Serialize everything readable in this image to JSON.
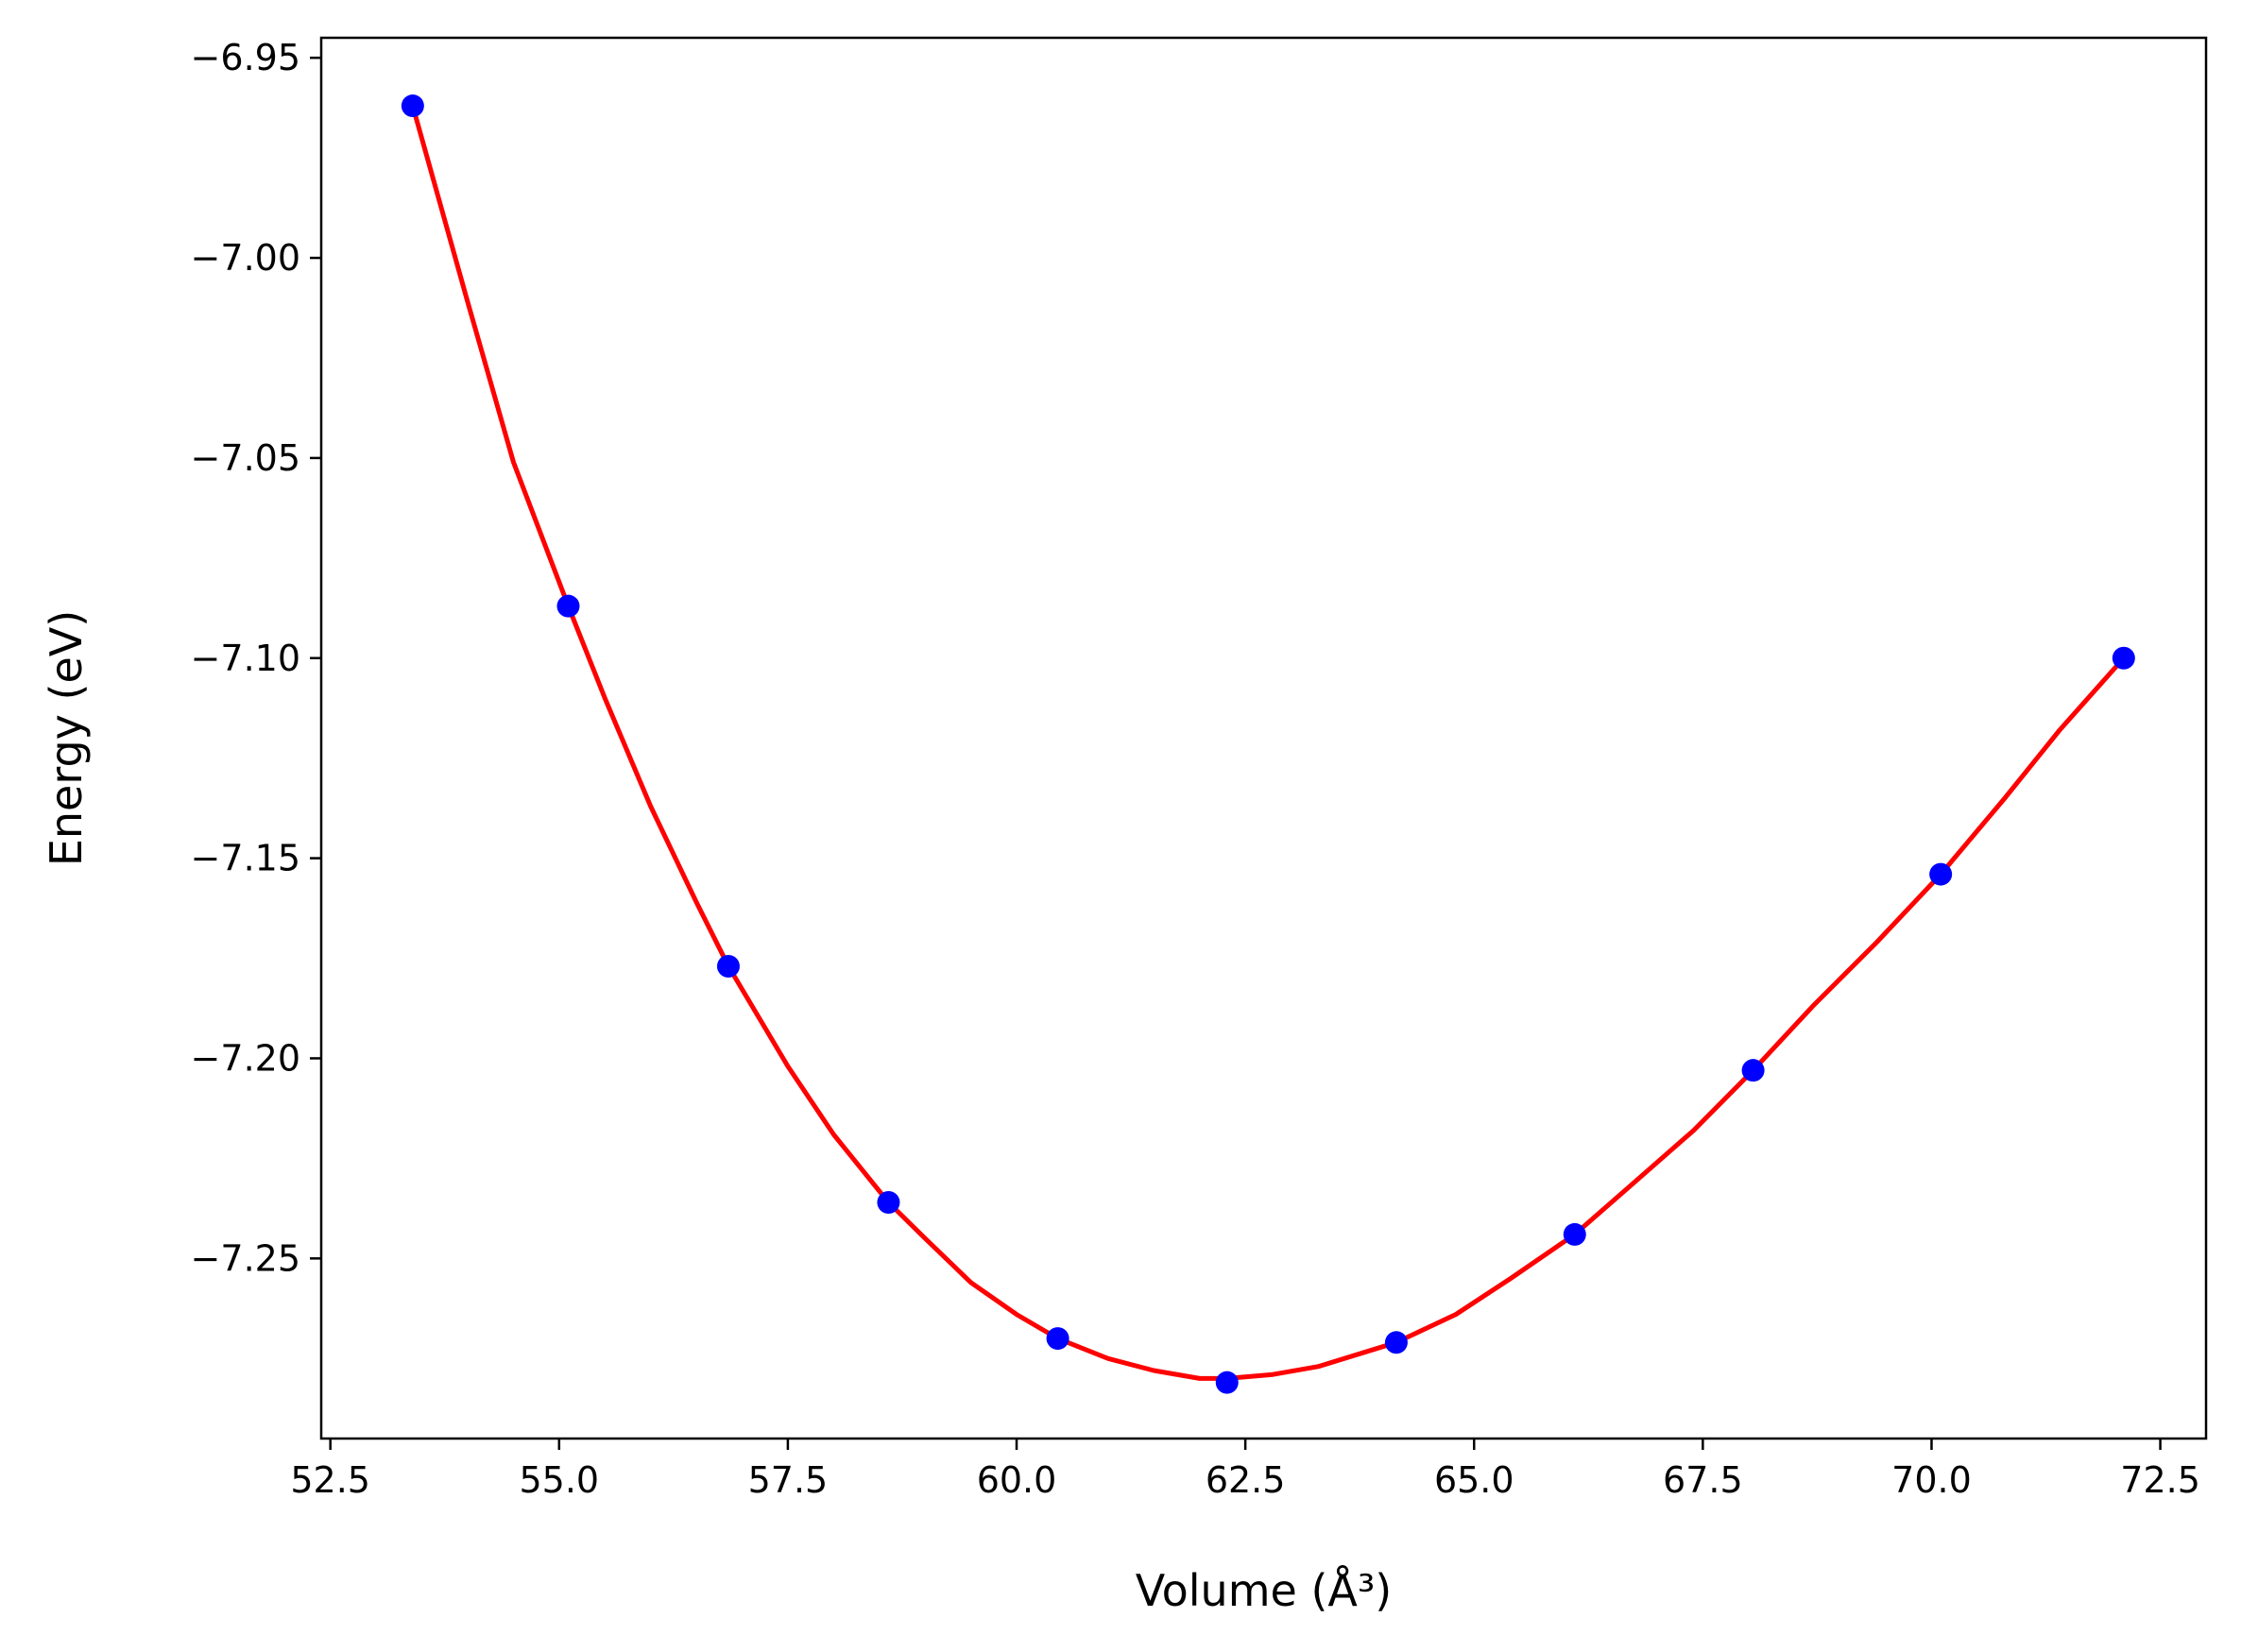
{
  "chart_data": {
    "type": "scatter",
    "xlabel": "Volume (Å³)",
    "ylabel": "Energy (eV)",
    "xlim": [
      52.4,
      73.0
    ],
    "ylim": [
      -7.295,
      -6.945
    ],
    "x_ticks": [
      52.5,
      55.0,
      57.5,
      60.0,
      62.5,
      65.0,
      67.5,
      70.0,
      72.5
    ],
    "x_tick_labels": [
      "52.5",
      "55.0",
      "57.5",
      "60.0",
      "62.5",
      "65.0",
      "67.5",
      "70.0",
      "72.5"
    ],
    "y_ticks": [
      -6.95,
      -7.0,
      -7.05,
      -7.1,
      -7.15,
      -7.2,
      -7.25
    ],
    "y_tick_labels": [
      "−6.95",
      "−7.00",
      "−7.05",
      "−7.10",
      "−7.15",
      "−7.20",
      "−7.25"
    ],
    "grid": false,
    "series": [
      {
        "kind": "points",
        "color": "#0000ff",
        "x": [
          53.4,
          55.1,
          56.85,
          58.6,
          60.45,
          62.3,
          64.15,
          66.1,
          68.05,
          70.1,
          72.1
        ],
        "y": [
          -6.962,
          -7.087,
          -7.177,
          -7.236,
          -7.27,
          -7.281,
          -7.271,
          -7.244,
          -7.203,
          -7.154,
          -7.1
        ]
      },
      {
        "kind": "fit-curve",
        "color": "#ff0000",
        "x": [
          53.4,
          54.0,
          54.5,
          55.1,
          55.5,
          56.0,
          56.5,
          56.85,
          57.5,
          58.0,
          58.6,
          59.0,
          59.5,
          60.0,
          60.45,
          61.0,
          61.5,
          62.0,
          62.3,
          62.8,
          63.3,
          64.15,
          64.8,
          65.4,
          66.1,
          66.7,
          67.4,
          68.05,
          68.7,
          69.4,
          70.1,
          70.8,
          71.4,
          72.1
        ],
        "y": [
          -6.962,
          -7.011,
          -7.051,
          -7.087,
          -7.11,
          -7.137,
          -7.161,
          -7.177,
          -7.202,
          -7.219,
          -7.236,
          -7.245,
          -7.256,
          -7.264,
          -7.27,
          -7.275,
          -7.278,
          -7.28,
          -7.28,
          -7.279,
          -7.277,
          -7.271,
          -7.264,
          -7.255,
          -7.244,
          -7.232,
          -7.218,
          -7.203,
          -7.187,
          -7.171,
          -7.154,
          -7.135,
          -7.118,
          -7.1
        ]
      }
    ]
  }
}
